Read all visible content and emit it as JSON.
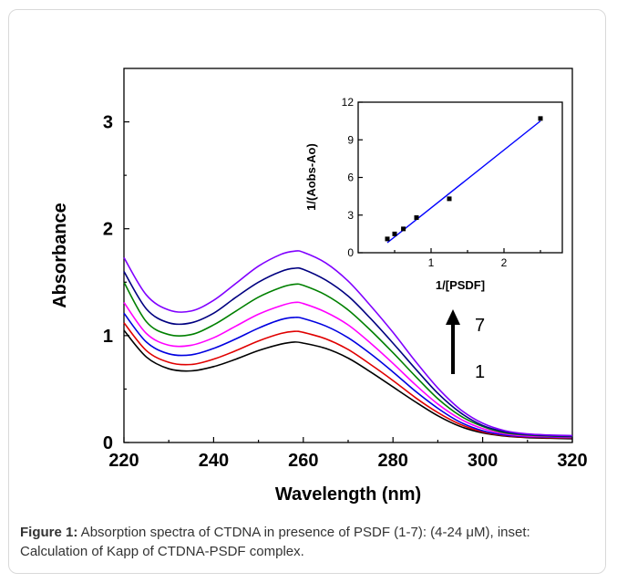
{
  "caption": {
    "label": "Figure 1:",
    "text": " Absorption spectra of CTDNA in presence of PSDF (1-7): (4-24 μM), inset: Calculation of Kapp of CTDNA-PSDF complex."
  },
  "arrow": {
    "bottom_label": "1",
    "top_label": "7"
  },
  "chart_data": [
    {
      "type": "line",
      "xlabel": "Wavelength (nm)",
      "ylabel": "Absorbance",
      "xlim": [
        220,
        320
      ],
      "ylim": [
        0,
        3.5
      ],
      "xticks": [
        220,
        240,
        260,
        280,
        300,
        320
      ],
      "yticks": [
        0,
        1,
        2,
        3
      ],
      "x": [
        220,
        225,
        230,
        235,
        240,
        245,
        250,
        255,
        258,
        260,
        265,
        270,
        275,
        280,
        285,
        290,
        295,
        300,
        305,
        310,
        315,
        320
      ],
      "series": [
        {
          "color": "#000000",
          "values": [
            1.05,
            0.8,
            0.69,
            0.67,
            0.71,
            0.78,
            0.86,
            0.92,
            0.94,
            0.93,
            0.88,
            0.79,
            0.66,
            0.52,
            0.38,
            0.25,
            0.15,
            0.09,
            0.06,
            0.045,
            0.04,
            0.035
          ]
        },
        {
          "color": "#e00000",
          "values": [
            1.12,
            0.86,
            0.75,
            0.73,
            0.78,
            0.86,
            0.95,
            1.02,
            1.04,
            1.03,
            0.97,
            0.87,
            0.73,
            0.58,
            0.42,
            0.28,
            0.17,
            0.1,
            0.065,
            0.05,
            0.045,
            0.04
          ]
        },
        {
          "color": "#0000e0",
          "values": [
            1.21,
            0.94,
            0.83,
            0.82,
            0.88,
            0.97,
            1.07,
            1.15,
            1.17,
            1.16,
            1.09,
            0.98,
            0.83,
            0.66,
            0.48,
            0.32,
            0.19,
            0.11,
            0.07,
            0.055,
            0.05,
            0.045
          ]
        },
        {
          "color": "#ff00ff",
          "values": [
            1.31,
            1.02,
            0.91,
            0.91,
            0.98,
            1.09,
            1.2,
            1.28,
            1.31,
            1.3,
            1.22,
            1.1,
            0.93,
            0.74,
            0.54,
            0.36,
            0.22,
            0.13,
            0.08,
            0.06,
            0.055,
            0.05
          ]
        },
        {
          "color": "#008000",
          "values": [
            1.5,
            1.13,
            1.01,
            1.01,
            1.1,
            1.23,
            1.36,
            1.45,
            1.48,
            1.47,
            1.38,
            1.24,
            1.05,
            0.84,
            0.62,
            0.41,
            0.25,
            0.15,
            0.09,
            0.07,
            0.06,
            0.055
          ]
        },
        {
          "color": "#000080",
          "values": [
            1.6,
            1.25,
            1.12,
            1.12,
            1.21,
            1.36,
            1.5,
            1.6,
            1.63,
            1.62,
            1.52,
            1.37,
            1.16,
            0.93,
            0.69,
            0.46,
            0.28,
            0.16,
            0.1,
            0.075,
            0.065,
            0.06
          ]
        },
        {
          "color": "#8000ff",
          "values": [
            1.73,
            1.38,
            1.24,
            1.23,
            1.33,
            1.49,
            1.65,
            1.76,
            1.79,
            1.78,
            1.68,
            1.51,
            1.28,
            1.03,
            0.76,
            0.51,
            0.31,
            0.18,
            0.11,
            0.08,
            0.07,
            0.065
          ]
        }
      ]
    },
    {
      "type": "scatter",
      "xlabel": "1/[PSDF]",
      "ylabel": "1/(Aobs-Ao)",
      "xlim": [
        0,
        2.8
      ],
      "ylim": [
        0,
        12
      ],
      "xticks": [
        1,
        2
      ],
      "yticks": [
        0,
        3,
        6,
        9,
        12
      ],
      "points": {
        "x": [
          0.4,
          0.5,
          0.62,
          0.8,
          1.25,
          2.5
        ],
        "y": [
          1.1,
          1.5,
          1.9,
          2.8,
          4.3,
          10.7
        ]
      },
      "fit_line": {
        "color": "#0000ff",
        "x": [
          0.4,
          2.5
        ],
        "y": [
          0.8,
          10.5
        ]
      }
    }
  ]
}
